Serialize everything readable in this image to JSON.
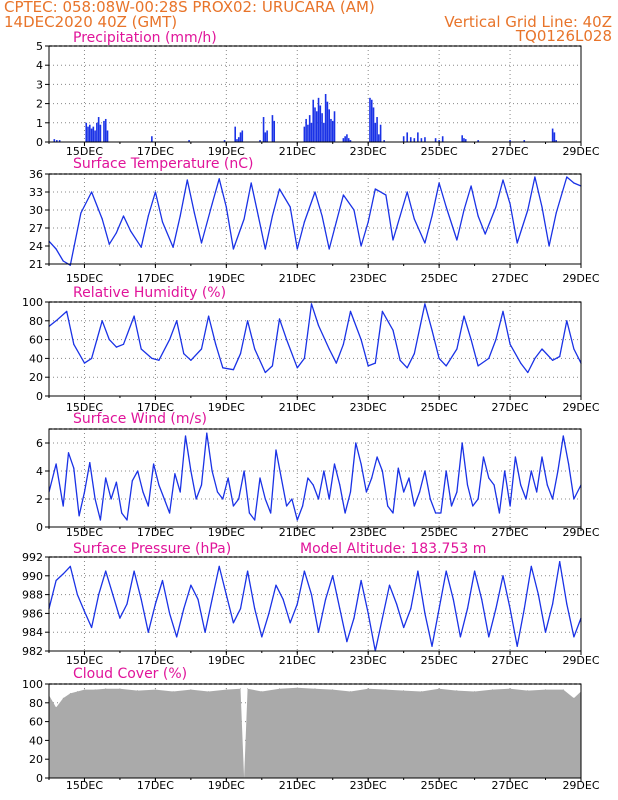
{
  "header": {
    "line1_left": "CPTEC:   058:08W-00:28S   PROX02: URUCARA (AM)",
    "line2_left": "14DEC2020 40Z (GMT)",
    "line2_right": "Vertical Grid Line: 40Z",
    "line3_right": "TQ0126L028"
  },
  "colors": {
    "header": "#e8742a",
    "title": "#e0149a",
    "line": "#1a32e6",
    "bar": "#1a32e6",
    "cloud": "#aaaaaa"
  },
  "x_ticks": [
    "15DEC",
    "17DEC",
    "19DEC",
    "21DEC",
    "23DEC",
    "25DEC",
    "27DEC",
    "29DEC"
  ],
  "chart_data": [
    {
      "type": "bar",
      "title": "Precipitation (mm/h)",
      "ylim": [
        0,
        5
      ],
      "yticks": [
        "0",
        "1",
        "2",
        "3",
        "4",
        "5"
      ],
      "xlim": [
        14.0,
        29.0
      ],
      "x": [
        14.15,
        14.22,
        14.3,
        15.05,
        15.1,
        15.15,
        15.2,
        15.25,
        15.3,
        15.35,
        15.4,
        15.45,
        15.55,
        15.6,
        15.65,
        16.9,
        17.95,
        18.95,
        19.25,
        19.3,
        19.35,
        19.4,
        19.45,
        19.95,
        20.05,
        20.1,
        20.15,
        20.3,
        20.35,
        21.2,
        21.25,
        21.3,
        21.35,
        21.4,
        21.45,
        21.5,
        21.55,
        21.6,
        21.65,
        21.7,
        21.75,
        21.8,
        21.85,
        21.9,
        21.95,
        22.0,
        22.05,
        22.3,
        22.35,
        22.4,
        22.45,
        22.5,
        23.05,
        23.1,
        23.15,
        23.2,
        23.25,
        23.3,
        23.35,
        23.45,
        24.0,
        24.1,
        24.2,
        24.3,
        24.4,
        24.5,
        24.6,
        24.9,
        25.0,
        25.1,
        25.65,
        25.7,
        25.75,
        26.1,
        27.0,
        27.4,
        28.2,
        28.25,
        28.3
      ],
      "values": [
        0.15,
        0.1,
        0.1,
        1.0,
        0.8,
        0.9,
        0.7,
        0.8,
        0.6,
        1.0,
        1.3,
        0.9,
        1.1,
        1.2,
        0.6,
        0.3,
        0.1,
        0.1,
        0.8,
        0.15,
        0.25,
        0.5,
        0.6,
        0.1,
        1.3,
        0.5,
        0.6,
        1.4,
        1.1,
        0.8,
        1.2,
        0.9,
        1.4,
        1.0,
        2.2,
        1.8,
        1.6,
        2.3,
        1.9,
        1.5,
        1.0,
        2.5,
        2.1,
        1.7,
        1.2,
        1.1,
        1.6,
        0.2,
        0.3,
        0.4,
        0.2,
        0.1,
        2.3,
        2.2,
        1.8,
        1.0,
        1.3,
        0.4,
        0.9,
        0.1,
        0.3,
        0.5,
        0.25,
        0.2,
        0.5,
        0.2,
        0.25,
        0.2,
        0.1,
        0.3,
        0.35,
        0.2,
        0.15,
        0.1,
        0.1,
        0.1,
        0.7,
        0.5,
        0.1
      ]
    },
    {
      "type": "line",
      "title": "Surface Temperature (nC)",
      "ylim": [
        21,
        36
      ],
      "yticks": [
        "21",
        "24",
        "27",
        "30",
        "33",
        "36"
      ],
      "xlim": [
        14.0,
        29.0
      ],
      "x": [
        14.0,
        14.2,
        14.4,
        14.6,
        14.9,
        15.2,
        15.5,
        15.7,
        15.9,
        16.1,
        16.3,
        16.6,
        16.8,
        17.0,
        17.2,
        17.5,
        17.7,
        17.9,
        18.1,
        18.3,
        18.6,
        18.8,
        19.0,
        19.2,
        19.5,
        19.7,
        19.9,
        20.1,
        20.3,
        20.5,
        20.8,
        21.0,
        21.2,
        21.5,
        21.7,
        21.9,
        22.1,
        22.3,
        22.6,
        22.8,
        23.0,
        23.2,
        23.5,
        23.7,
        23.9,
        24.1,
        24.3,
        24.6,
        24.8,
        25.0,
        25.2,
        25.5,
        25.7,
        25.9,
        26.1,
        26.3,
        26.6,
        26.8,
        27.0,
        27.2,
        27.5,
        27.7,
        27.9,
        28.1,
        28.3,
        28.6,
        28.8,
        29.0
      ],
      "values": [
        24.8,
        23.5,
        21.5,
        20.8,
        29.5,
        33.0,
        28.5,
        24.3,
        26.2,
        29.0,
        26.5,
        23.8,
        29.0,
        33.0,
        28.0,
        23.8,
        29.0,
        35.0,
        29.5,
        24.5,
        31.0,
        35.2,
        30.5,
        23.5,
        28.5,
        34.5,
        29.0,
        23.5,
        29.0,
        33.5,
        30.5,
        23.5,
        28.0,
        33.0,
        29.0,
        23.5,
        28.0,
        32.5,
        30.0,
        24.0,
        28.0,
        33.5,
        32.5,
        25.0,
        29.0,
        33.0,
        28.5,
        24.5,
        29.0,
        34.5,
        30.5,
        25.0,
        30.0,
        34.0,
        29.0,
        26.0,
        30.5,
        35.0,
        31.0,
        24.5,
        30.0,
        35.5,
        30.5,
        24.0,
        29.5,
        35.5,
        34.5,
        34.0
      ]
    },
    {
      "type": "line",
      "title": "Relative Humidity (%)",
      "ylim": [
        0,
        100
      ],
      "yticks": [
        "0",
        "20",
        "40",
        "60",
        "80",
        "100"
      ],
      "xlim": [
        14.0,
        29.0
      ],
      "x": [
        14.0,
        14.2,
        14.5,
        14.7,
        15.0,
        15.2,
        15.5,
        15.7,
        15.9,
        16.1,
        16.4,
        16.6,
        16.9,
        17.1,
        17.4,
        17.6,
        17.8,
        18.0,
        18.3,
        18.5,
        18.7,
        18.9,
        19.2,
        19.4,
        19.6,
        19.8,
        20.1,
        20.3,
        20.5,
        20.7,
        21.0,
        21.2,
        21.4,
        21.6,
        21.9,
        22.1,
        22.3,
        22.5,
        22.8,
        23.0,
        23.2,
        23.4,
        23.7,
        23.9,
        24.1,
        24.3,
        24.6,
        24.8,
        25.0,
        25.2,
        25.5,
        25.7,
        25.9,
        26.1,
        26.4,
        26.6,
        26.8,
        27.0,
        27.3,
        27.5,
        27.7,
        27.9,
        28.2,
        28.4,
        28.6,
        28.8,
        29.0
      ],
      "values": [
        74,
        80,
        90,
        55,
        35,
        40,
        80,
        60,
        52,
        55,
        85,
        50,
        40,
        38,
        60,
        80,
        45,
        38,
        50,
        85,
        55,
        30,
        28,
        45,
        80,
        50,
        25,
        32,
        82,
        60,
        30,
        40,
        98,
        75,
        50,
        35,
        55,
        90,
        60,
        32,
        35,
        90,
        70,
        38,
        30,
        45,
        98,
        70,
        40,
        32,
        50,
        85,
        60,
        32,
        40,
        60,
        90,
        55,
        35,
        25,
        40,
        50,
        38,
        42,
        80,
        50,
        35
      ]
    },
    {
      "type": "line",
      "title": "Surface Wind (m/s)",
      "ylim": [
        0,
        7
      ],
      "yticks": [
        "0",
        "2",
        "4",
        "6"
      ],
      "xlim": [
        14.0,
        29.0
      ],
      "x": [
        14.0,
        14.2,
        14.4,
        14.55,
        14.7,
        14.85,
        15.0,
        15.15,
        15.3,
        15.45,
        15.6,
        15.75,
        15.9,
        16.05,
        16.2,
        16.35,
        16.5,
        16.65,
        16.8,
        16.95,
        17.1,
        17.25,
        17.4,
        17.55,
        17.7,
        17.85,
        18.0,
        18.15,
        18.3,
        18.45,
        18.6,
        18.75,
        18.9,
        19.05,
        19.2,
        19.35,
        19.5,
        19.65,
        19.8,
        19.95,
        20.1,
        20.25,
        20.4,
        20.55,
        20.7,
        20.85,
        21.0,
        21.15,
        21.3,
        21.45,
        21.6,
        21.75,
        21.9,
        22.05,
        22.2,
        22.35,
        22.5,
        22.65,
        22.8,
        22.95,
        23.1,
        23.25,
        23.4,
        23.55,
        23.7,
        23.85,
        24.0,
        24.15,
        24.3,
        24.45,
        24.6,
        24.75,
        24.9,
        25.05,
        25.2,
        25.35,
        25.5,
        25.65,
        25.8,
        25.95,
        26.1,
        26.25,
        26.4,
        26.55,
        26.7,
        26.85,
        27.0,
        27.15,
        27.3,
        27.45,
        27.6,
        27.75,
        27.9,
        28.05,
        28.2,
        28.35,
        28.5,
        28.65,
        28.8,
        29.0
      ],
      "values": [
        2.5,
        4.5,
        1.5,
        5.3,
        4.2,
        0.8,
        2.5,
        4.6,
        2.0,
        0.5,
        3.5,
        2.0,
        3.2,
        1.0,
        0.5,
        3.3,
        4.0,
        2.5,
        1.5,
        4.5,
        3.0,
        2.0,
        1.0,
        3.8,
        2.5,
        6.5,
        4.0,
        2.0,
        3.0,
        6.7,
        4.0,
        2.5,
        2.0,
        3.5,
        1.5,
        2.0,
        4.0,
        1.0,
        0.5,
        3.5,
        2.0,
        1.0,
        5.5,
        3.5,
        1.5,
        2.0,
        0.5,
        1.5,
        3.5,
        3.0,
        2.0,
        4.0,
        2.0,
        4.5,
        3.0,
        1.0,
        2.5,
        6.0,
        4.5,
        2.5,
        3.5,
        5.0,
        4.0,
        1.5,
        1.0,
        4.2,
        2.5,
        3.5,
        1.5,
        2.5,
        4.0,
        2.0,
        1.0,
        1.0,
        4.0,
        1.5,
        2.5,
        6.0,
        3.0,
        1.5,
        2.0,
        5.0,
        3.5,
        3.0,
        1.0,
        4.0,
        1.5,
        5.0,
        3.0,
        2.0,
        4.0,
        2.5,
        5.0,
        3.0,
        2.0,
        4.0,
        6.5,
        4.5,
        2.0,
        3.0
      ]
    },
    {
      "type": "line",
      "title": "Surface Pressure (hPa)",
      "annotation": "Model Altitude: 183.753  m",
      "ylim": [
        982,
        992
      ],
      "yticks": [
        "982",
        "984",
        "986",
        "988",
        "990",
        "992"
      ],
      "xlim": [
        14.0,
        29.0
      ],
      "x": [
        14.0,
        14.2,
        14.4,
        14.6,
        14.8,
        15.0,
        15.2,
        15.4,
        15.6,
        15.8,
        16.0,
        16.2,
        16.4,
        16.6,
        16.8,
        17.0,
        17.2,
        17.4,
        17.6,
        17.8,
        18.0,
        18.2,
        18.4,
        18.6,
        18.8,
        19.0,
        19.2,
        19.4,
        19.6,
        19.8,
        20.0,
        20.2,
        20.4,
        20.6,
        20.8,
        21.0,
        21.2,
        21.4,
        21.6,
        21.8,
        22.0,
        22.2,
        22.4,
        22.6,
        22.8,
        23.0,
        23.2,
        23.4,
        23.6,
        23.8,
        24.0,
        24.2,
        24.4,
        24.6,
        24.8,
        25.0,
        25.2,
        25.4,
        25.6,
        25.8,
        26.0,
        26.2,
        26.4,
        26.6,
        26.8,
        27.0,
        27.2,
        27.4,
        27.6,
        27.8,
        28.0,
        28.2,
        28.4,
        28.6,
        28.8,
        29.0
      ],
      "values": [
        986.5,
        989.5,
        990.2,
        991.0,
        988.0,
        986.2,
        984.5,
        988.0,
        990.5,
        988.0,
        985.5,
        987.0,
        990.5,
        987.5,
        984.0,
        987.0,
        989.5,
        986.0,
        983.5,
        986.5,
        989.0,
        987.5,
        984.0,
        987.5,
        991.0,
        988.0,
        985.0,
        986.5,
        990.5,
        986.5,
        983.5,
        986.0,
        989.0,
        987.5,
        985.0,
        987.0,
        990.5,
        988.0,
        984.0,
        987.5,
        990.0,
        986.5,
        983.0,
        985.5,
        989.5,
        986.0,
        982.0,
        985.5,
        989.0,
        987.0,
        984.5,
        986.5,
        990.5,
        986.0,
        982.5,
        986.5,
        990.5,
        987.5,
        983.5,
        986.5,
        990.5,
        987.5,
        983.5,
        986.5,
        990.0,
        986.5,
        982.5,
        986.5,
        991.0,
        988.0,
        984.0,
        987.0,
        991.5,
        987.0,
        983.5,
        985.5
      ]
    },
    {
      "type": "area",
      "title": "Cloud Cover (%)",
      "ylim": [
        0,
        100
      ],
      "yticks": [
        "0",
        "20",
        "40",
        "60",
        "80",
        "100"
      ],
      "xlim": [
        14.0,
        29.0
      ],
      "x": [
        14.0,
        14.2,
        14.4,
        14.6,
        14.8,
        15.0,
        15.3,
        15.6,
        16.0,
        16.5,
        17.0,
        17.5,
        18.0,
        18.5,
        19.0,
        19.4,
        19.5,
        19.6,
        20.0,
        20.5,
        21.0,
        21.5,
        22.0,
        22.5,
        23.0,
        23.5,
        24.0,
        24.5,
        25.0,
        25.5,
        26.0,
        26.5,
        27.0,
        27.5,
        28.0,
        28.5,
        28.8,
        29.0
      ],
      "values": [
        88,
        75,
        85,
        90,
        92,
        94,
        94,
        95,
        95,
        93,
        94,
        92,
        94,
        92,
        94,
        95,
        0,
        95,
        92,
        95,
        96,
        95,
        94,
        92,
        95,
        94,
        93,
        92,
        95,
        93,
        92,
        94,
        95,
        93,
        94,
        94,
        85,
        92
      ]
    }
  ]
}
